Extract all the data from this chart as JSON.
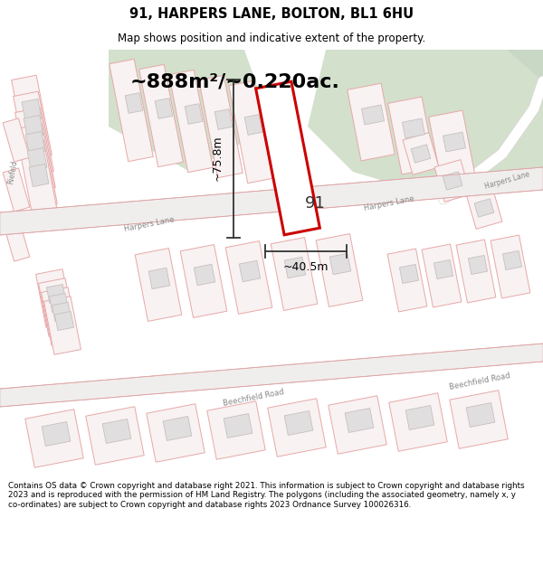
{
  "title": "91, HARPERS LANE, BOLTON, BL1 6HU",
  "subtitle": "Map shows position and indicative extent of the property.",
  "area_text": "~888m²/~0.220ac.",
  "dim_width": "~40.5m",
  "dim_height": "~75.8m",
  "property_label": "91",
  "footer": "Contains OS data © Crown copyright and database right 2021. This information is subject to Crown copyright and database rights 2023 and is reproduced with the permission of HM Land Registry. The polygons (including the associated geometry, namely x, y co-ordinates) are subject to Crown copyright and database rights 2023 Ordnance Survey 100026316.",
  "map_bg": "#f5f0f0",
  "parcel_outline": "#e8a8a8",
  "parcel_fill": "#f8f2f2",
  "gray_parcel_fill": "#e0dede",
  "gray_parcel_outline": "#c8c0c0",
  "green_area": "#d4e0d0",
  "road_fill": "#f0eded",
  "road_outline": "#d8c0c0",
  "plot_color": "#cc0000",
  "title_color": "#000000",
  "footer_color": "#000000",
  "dim_line_color": "#333333"
}
